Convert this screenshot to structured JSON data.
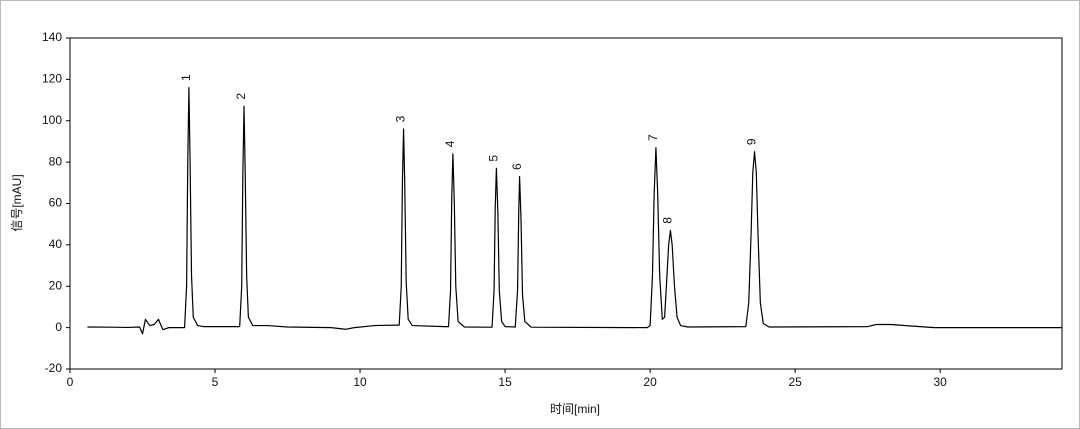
{
  "chart_data": {
    "type": "line",
    "x_label": "时间[min]",
    "y_label": "信号[mAU]",
    "xlim": [
      0,
      34.2
    ],
    "xticks": [
      0,
      5,
      10,
      15,
      20,
      25,
      30
    ],
    "ylim": [
      -20,
      140
    ],
    "yticks": [
      -20,
      0,
      20,
      40,
      60,
      80,
      100,
      120,
      140
    ],
    "grid": false,
    "series": [
      {
        "color": "#000000",
        "x": [
          0.6,
          1.4,
          2.0,
          2.4,
          2.5,
          2.6,
          2.75,
          2.9,
          3.05,
          3.2,
          3.4,
          3.8,
          3.95,
          4.02,
          4.06,
          4.1,
          4.14,
          4.19,
          4.25,
          4.4,
          4.6,
          5.85,
          5.92,
          5.96,
          6.0,
          6.04,
          6.09,
          6.15,
          6.3,
          6.8,
          7.5,
          9.0,
          9.5,
          9.8,
          10.5,
          11.2,
          11.35,
          11.42,
          11.46,
          11.5,
          11.54,
          11.59,
          11.66,
          11.8,
          12.9,
          13.05,
          13.12,
          13.16,
          13.2,
          13.25,
          13.3,
          13.38,
          13.6,
          14.4,
          14.55,
          14.62,
          14.66,
          14.7,
          14.75,
          14.8,
          14.88,
          15.0,
          15.35,
          15.43,
          15.47,
          15.5,
          15.55,
          15.6,
          15.68,
          15.9,
          19.9,
          20.0,
          20.08,
          20.14,
          20.2,
          20.26,
          20.33,
          20.42,
          20.5,
          20.58,
          20.64,
          20.7,
          20.76,
          20.84,
          20.93,
          21.05,
          21.3,
          23.3,
          23.4,
          23.48,
          23.54,
          23.6,
          23.66,
          23.72,
          23.8,
          23.9,
          24.1,
          27.5,
          27.8,
          28.3,
          29.0,
          29.8,
          34.2
        ],
        "values": [
          0.3,
          0.2,
          0.1,
          0.3,
          -3,
          4,
          1,
          1.5,
          4,
          -1,
          0,
          0,
          0,
          20,
          80,
          116,
          80,
          25,
          5,
          1,
          0.5,
          0.5,
          20,
          75,
          107,
          75,
          25,
          5,
          1,
          1,
          0.3,
          0,
          -0.8,
          0,
          1,
          1.2,
          1.2,
          20,
          70,
          96,
          70,
          22,
          4,
          1,
          0.5,
          0.5,
          18,
          62,
          84,
          60,
          20,
          3,
          0.3,
          0.2,
          0.2,
          18,
          58,
          77,
          56,
          18,
          3,
          0.5,
          0.3,
          18,
          55,
          73,
          52,
          16,
          3,
          0.2,
          0,
          1,
          25,
          65,
          87,
          65,
          25,
          4,
          5,
          25,
          40,
          47,
          40,
          20,
          5,
          1,
          0.3,
          0.5,
          12,
          45,
          75,
          85,
          75,
          45,
          12,
          2,
          0.3,
          0.5,
          1.5,
          1.5,
          0.8,
          0,
          0
        ]
      }
    ],
    "annotations": [
      {
        "text": "1",
        "x": 4.1,
        "y": 116
      },
      {
        "text": "2",
        "x": 6.0,
        "y": 107
      },
      {
        "text": "3",
        "x": 11.5,
        "y": 96
      },
      {
        "text": "4",
        "x": 13.2,
        "y": 84
      },
      {
        "text": "5",
        "x": 14.7,
        "y": 77
      },
      {
        "text": "6",
        "x": 15.5,
        "y": 73
      },
      {
        "text": "7",
        "x": 20.2,
        "y": 87
      },
      {
        "text": "8",
        "x": 20.7,
        "y": 47
      },
      {
        "text": "9",
        "x": 23.6,
        "y": 85
      }
    ]
  }
}
